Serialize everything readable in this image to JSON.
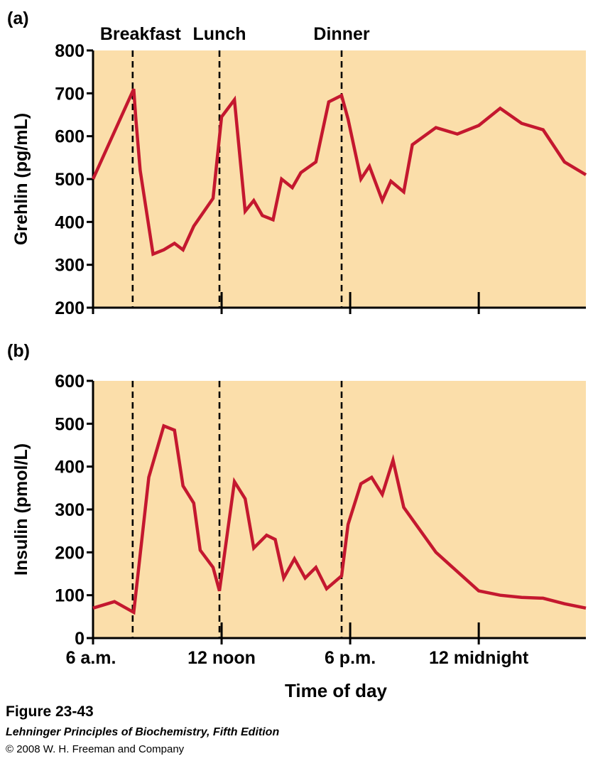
{
  "colors": {
    "plot_background": "#fbdeaa",
    "series_line": "#c4182f",
    "axis": "#000000",
    "meal_line": "#000000"
  },
  "chart_data": [
    {
      "id": "a",
      "panel_label": "(a)",
      "type": "line",
      "ylabel": "Grehlin (pg/mL)",
      "xlabel": "",
      "xlim": [
        6,
        29
      ],
      "ylim": [
        200,
        800
      ],
      "yticks": [
        "200",
        "300",
        "400",
        "500",
        "600",
        "700",
        "800"
      ],
      "grid": false,
      "meal_markers": [
        {
          "label": "Breakfast",
          "x": 7.85
        },
        {
          "label": "Lunch",
          "x": 11.9
        },
        {
          "label": "Dinner",
          "x": 17.6
        }
      ],
      "series": [
        {
          "name": "Ghrelin",
          "x": [
            6.0,
            7.9,
            8.0,
            8.2,
            8.8,
            9.3,
            9.8,
            10.2,
            10.7,
            11.6,
            12.0,
            12.6,
            13.1,
            13.5,
            13.9,
            14.4,
            14.8,
            15.3,
            15.7,
            16.4,
            17.0,
            17.6,
            17.9,
            18.5,
            18.9,
            19.5,
            19.9,
            20.5,
            20.9,
            22.0,
            23.0,
            24.0,
            25.0,
            26.0,
            27.0,
            28.0,
            29.0
          ],
          "values": [
            500,
            710,
            640,
            520,
            325,
            335,
            350,
            335,
            390,
            455,
            645,
            685,
            425,
            450,
            415,
            405,
            500,
            480,
            515,
            540,
            680,
            695,
            640,
            500,
            530,
            450,
            495,
            470,
            580,
            620,
            605,
            625,
            665,
            630,
            615,
            540,
            510
          ]
        }
      ]
    },
    {
      "id": "b",
      "panel_label": "(b)",
      "type": "line",
      "ylabel": "Insulin (pmol/L)",
      "xlabel": "Time of day",
      "xlim": [
        6,
        29
      ],
      "ylim": [
        0,
        600
      ],
      "yticks": [
        "0",
        "100",
        "200",
        "300",
        "400",
        "500",
        "600"
      ],
      "xticks": [
        {
          "label": "6 a.m.",
          "x": 6
        },
        {
          "label": "12 noon",
          "x": 12
        },
        {
          "label": "6 p.m.",
          "x": 18
        },
        {
          "label": "12 midnight",
          "x": 24
        }
      ],
      "grid": false,
      "meal_markers": [
        {
          "label": "Breakfast",
          "x": 7.85
        },
        {
          "label": "Lunch",
          "x": 11.9
        },
        {
          "label": "Dinner",
          "x": 17.6
        }
      ],
      "series": [
        {
          "name": "Insulin",
          "x": [
            6.0,
            7.0,
            7.9,
            8.6,
            9.3,
            9.8,
            10.2,
            10.7,
            11.0,
            11.6,
            11.9,
            12.6,
            13.1,
            13.5,
            14.1,
            14.5,
            14.9,
            15.4,
            15.9,
            16.4,
            16.9,
            17.6,
            17.9,
            18.5,
            19.0,
            19.5,
            20.0,
            20.5,
            22.0,
            24.0,
            25.0,
            26.0,
            27.0,
            28.0,
            29.0
          ],
          "values": [
            70,
            85,
            60,
            375,
            495,
            485,
            355,
            315,
            205,
            165,
            110,
            365,
            325,
            210,
            240,
            230,
            140,
            185,
            140,
            165,
            115,
            145,
            265,
            360,
            375,
            335,
            415,
            305,
            200,
            110,
            100,
            95,
            93,
            80,
            70
          ]
        }
      ]
    }
  ],
  "caption": {
    "figure_number": "Figure 23-43",
    "book_title": "Lehninger Principles of Biochemistry, Fifth Edition",
    "copyright": "© 2008 W. H. Freeman and Company"
  }
}
